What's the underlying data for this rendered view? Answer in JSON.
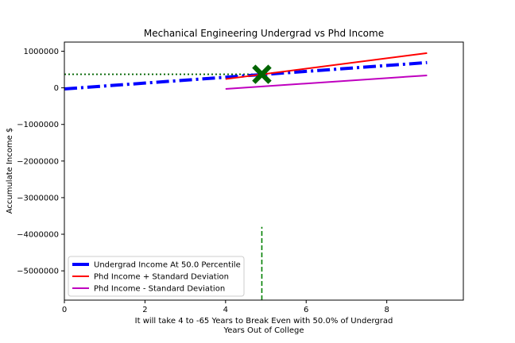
{
  "chart_data": {
    "type": "line",
    "title": "Mechanical Engineering Undergrad vs Phd Income",
    "xlabel_line1": "It will take 4 to -65 Years to Break Even with 50.0% of Undergrad",
    "xlabel_line2": "Years Out of College",
    "ylabel": "Accumulate Income $",
    "xlim": [
      0,
      9.9
    ],
    "ylim": [
      -5800000,
      1250000
    ],
    "x_ticks": [
      0,
      2,
      4,
      6,
      8
    ],
    "x_tick_labels": [
      "0",
      "2",
      "4",
      "6",
      "8"
    ],
    "y_ticks": [
      1000000,
      0,
      -1000000,
      -2000000,
      -3000000,
      -4000000,
      -5000000
    ],
    "y_tick_labels": [
      "1000000",
      "0",
      "−1000000",
      "−2000000",
      "−3000000",
      "−4000000",
      "−5000000"
    ],
    "series": [
      {
        "name": "Undergrad Income At 50.0 Percentile",
        "x": [
          0,
          9
        ],
        "y": [
          -30000,
          690000
        ],
        "color": "#0000ff",
        "style": "dashdot"
      },
      {
        "name": "Phd Income + Standard Deviation",
        "x": [
          4,
          9
        ],
        "y": [
          240000,
          950000
        ],
        "color": "#ff0000",
        "style": "solid"
      },
      {
        "name": "Phd Income - Standard Deviation",
        "x": [
          4,
          9
        ],
        "y": [
          -30000,
          340000
        ],
        "color": "#bf00bf",
        "style": "solid"
      }
    ],
    "break_even_hline": {
      "y": 370000,
      "x_from": 0,
      "x_to": 4.9,
      "color": "#006400",
      "style": "dotted"
    },
    "break_even_vline": {
      "x": 4.9,
      "y_from": -5800000,
      "y_to": -3800000,
      "color": "#008000",
      "style": "dashed"
    },
    "break_even_marker": {
      "x": 4.9,
      "y": 370000,
      "symbol": "X",
      "color": "#006400"
    },
    "legend_position": "lower-left",
    "grid": false
  }
}
